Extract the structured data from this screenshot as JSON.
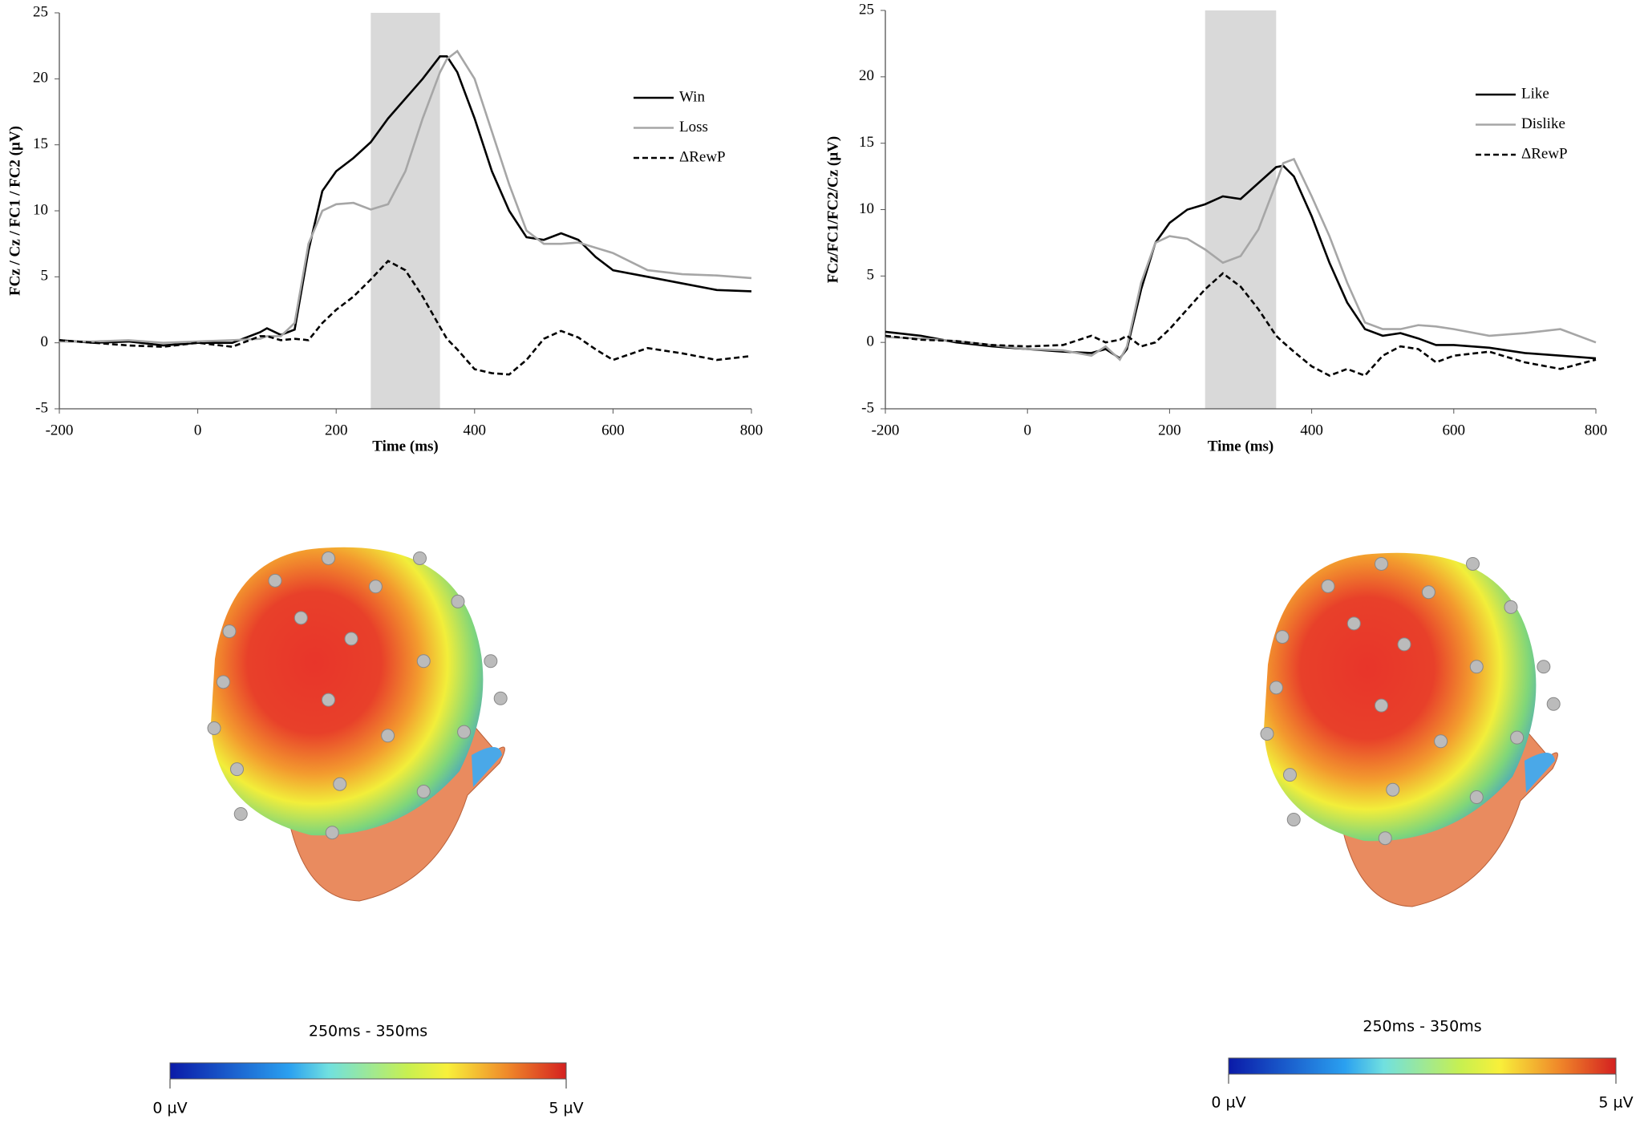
{
  "chart_data": [
    {
      "type": "line",
      "xlabel": "Time (ms)",
      "ylabel": "FCz / Cz / FC1 / FC2 (µV)",
      "x": [
        -200,
        -150,
        -100,
        -50,
        0,
        50,
        90,
        100,
        120,
        140,
        160,
        180,
        200,
        225,
        250,
        275,
        300,
        325,
        350,
        360,
        375,
        400,
        425,
        450,
        475,
        500,
        525,
        550,
        575,
        600,
        650,
        700,
        750,
        800
      ],
      "series": [
        {
          "name": "Win",
          "color": "#000000",
          "linestyle": "solid",
          "values": [
            0.2,
            0,
            0.1,
            -0.2,
            0,
            0,
            0.8,
            1.1,
            0.6,
            1,
            7,
            11.5,
            13,
            14,
            15.2,
            17,
            18.5,
            20,
            21.7,
            21.7,
            20.5,
            17,
            13,
            10,
            8,
            7.8,
            8.3,
            7.8,
            6.5,
            5.5,
            5,
            4.5,
            4,
            3.9
          ]
        },
        {
          "name": "Loss",
          "color": "#a6a6a6",
          "linestyle": "solid",
          "values": [
            0.1,
            0.1,
            0.2,
            0,
            0.1,
            0.2,
            0.3,
            0.5,
            0.5,
            1.5,
            7.5,
            10,
            10.5,
            10.6,
            10.1,
            10.5,
            13,
            17,
            20.5,
            21.5,
            22.1,
            20,
            16,
            12,
            8.5,
            7.5,
            7.5,
            7.6,
            7.2,
            6.8,
            5.5,
            5.2,
            5.1,
            4.9
          ]
        },
        {
          "name": "ΔRewP",
          "color": "#000000",
          "linestyle": "dashed",
          "values": [
            0.2,
            0,
            -0.2,
            -0.3,
            0,
            -0.3,
            0.5,
            0.5,
            0.2,
            0.3,
            0.2,
            1.5,
            2.5,
            3.5,
            4.8,
            6.2,
            5.5,
            3.5,
            1.2,
            0.3,
            -0.5,
            -2,
            -2.3,
            -2.4,
            -1.3,
            0.3,
            0.9,
            0.4,
            -0.5,
            -1.3,
            -0.4,
            -0.8,
            -1.3,
            -1
          ]
        }
      ],
      "xlim": [
        -200,
        800
      ],
      "xticks": [
        -200,
        0,
        200,
        400,
        600,
        800
      ],
      "ylim": [
        -5,
        25
      ],
      "yticks": [
        -5,
        0,
        5,
        10,
        15,
        20,
        25
      ],
      "highlight": [
        250,
        350
      ],
      "legend": "upper right",
      "topomap": {
        "title": "250ms - 350ms",
        "clim": [
          0,
          5
        ],
        "cticks": [
          {
            "value": 0,
            "label": "0 µV"
          },
          {
            "value": 5,
            "label": "5 µV"
          }
        ]
      }
    },
    {
      "type": "line",
      "xlabel": "Time (ms)",
      "ylabel": "FCz/FC1/FC2/Cz (µV)",
      "x": [
        -200,
        -150,
        -100,
        -50,
        0,
        50,
        90,
        110,
        130,
        140,
        160,
        180,
        200,
        225,
        250,
        275,
        300,
        325,
        350,
        360,
        375,
        400,
        425,
        450,
        475,
        500,
        525,
        550,
        575,
        600,
        650,
        700,
        750,
        800
      ],
      "series": [
        {
          "name": "Like",
          "color": "#000000",
          "linestyle": "solid",
          "values": [
            0.8,
            0.5,
            0,
            -0.3,
            -0.5,
            -0.7,
            -0.8,
            -0.5,
            -1.2,
            -0.5,
            4,
            7.5,
            9,
            10,
            10.4,
            11,
            10.8,
            12,
            13.2,
            13.3,
            12.5,
            9.5,
            6,
            3,
            1,
            0.5,
            0.7,
            0.3,
            -0.2,
            -0.2,
            -0.4,
            -0.8,
            -1,
            -1.2
          ]
        },
        {
          "name": "Dislike",
          "color": "#a6a6a6",
          "linestyle": "solid",
          "values": [
            0.4,
            0.3,
            0.1,
            -0.2,
            -0.5,
            -0.6,
            -1,
            -0.3,
            -1.3,
            -0.3,
            4.5,
            7.5,
            8,
            7.8,
            7,
            6,
            6.5,
            8.5,
            12,
            13.5,
            13.8,
            11,
            8,
            4.5,
            1.5,
            1,
            1,
            1.3,
            1.2,
            1,
            0.5,
            0.7,
            1,
            0
          ]
        },
        {
          "name": "ΔRewP",
          "color": "#000000",
          "linestyle": "dashed",
          "values": [
            0.5,
            0.2,
            0.1,
            -0.2,
            -0.3,
            -0.2,
            0.5,
            0,
            0.2,
            0.5,
            -0.3,
            0,
            1,
            2.5,
            4,
            5.2,
            4.2,
            2.5,
            0.5,
            0,
            -0.7,
            -1.8,
            -2.5,
            -2,
            -2.5,
            -1,
            -0.3,
            -0.5,
            -1.5,
            -1,
            -0.7,
            -1.5,
            -2,
            -1.3
          ]
        }
      ],
      "xlim": [
        -200,
        800
      ],
      "xticks": [
        -200,
        0,
        200,
        400,
        600,
        800
      ],
      "ylim": [
        -5,
        25
      ],
      "yticks": [
        -5,
        0,
        5,
        10,
        15,
        20,
        25
      ],
      "highlight": [
        250,
        350
      ],
      "legend": "upper right",
      "topomap": {
        "title": "250ms - 350ms",
        "clim": [
          0,
          5
        ],
        "cticks": [
          {
            "value": 0,
            "label": "0 µV"
          },
          {
            "value": 5,
            "label": "5 µV"
          }
        ]
      }
    }
  ]
}
